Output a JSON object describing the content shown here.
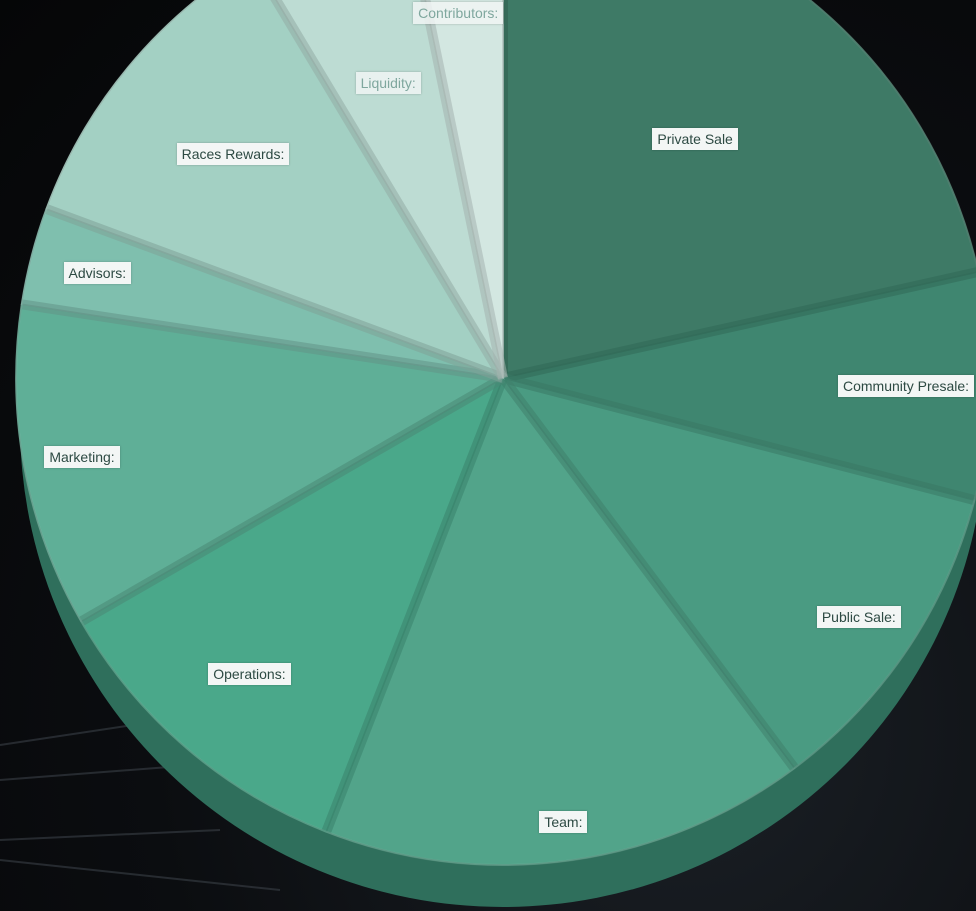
{
  "chart_data": {
    "type": "pie",
    "title": "",
    "categories": [
      "Private Sale",
      "Community Presale:",
      "Public Sale:",
      "Team:",
      "Operations:",
      "Marketing:",
      "Advisors:",
      "Races Rewards:",
      "Liquidity:",
      "Contributors:"
    ],
    "values": [
      20,
      7,
      10,
      15,
      10,
      10,
      3,
      10,
      5,
      3
    ],
    "colors": [
      "#3e7a66",
      "#3f8670",
      "#4a9b82",
      "#52a48a",
      "#4aa88a",
      "#5faf97",
      "#7fbfae",
      "#a3d0c3",
      "#bddcd3",
      "#d3e7e1"
    ],
    "legend": "none"
  }
}
